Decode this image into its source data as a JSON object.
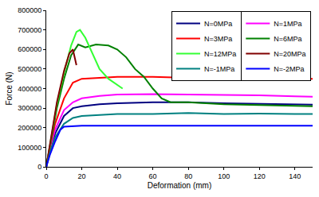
{
  "chart_data": {
    "type": "line",
    "x_label": "Deformation (mm)",
    "y_label": "Force (N)",
    "xlim": [
      0,
      150
    ],
    "xticks": [
      0,
      20,
      40,
      60,
      80,
      100,
      120,
      140
    ],
    "ylim": [
      0,
      800000
    ],
    "yticks": [
      0,
      100000,
      200000,
      300000,
      400000,
      500000,
      600000,
      700000,
      800000
    ],
    "grid": false,
    "legend": "upper right",
    "series": [
      {
        "name": "N=0MPa",
        "color": "#000080",
        "x": [
          0,
          2,
          5,
          10,
          15,
          20,
          30,
          40,
          60,
          80,
          100,
          120,
          140,
          150
        ],
        "values": [
          0,
          80000,
          170000,
          260000,
          300000,
          310000,
          320000,
          325000,
          330000,
          330000,
          325000,
          322000,
          320000,
          318000
        ]
      },
      {
        "name": "N=1MPa",
        "color": "#ff00ff",
        "x": [
          0,
          2,
          5,
          10,
          15,
          20,
          30,
          40,
          60,
          80,
          100,
          120,
          140,
          150
        ],
        "values": [
          0,
          90000,
          190000,
          290000,
          330000,
          350000,
          362000,
          370000,
          372000,
          370000,
          368000,
          365000,
          360000,
          358000
        ]
      },
      {
        "name": "N=3MPa",
        "color": "#ff0000",
        "x": [
          0,
          2,
          5,
          10,
          15,
          20,
          30,
          40,
          60,
          80,
          100,
          120,
          140,
          150
        ],
        "values": [
          0,
          100000,
          220000,
          350000,
          430000,
          450000,
          455000,
          460000,
          460000,
          455000,
          455000,
          452000,
          450000,
          450000
        ]
      },
      {
        "name": "N=6MPa",
        "color": "#008000",
        "x": [
          0,
          3,
          6,
          10,
          14,
          18,
          22,
          28,
          35,
          40,
          45,
          50,
          55,
          60,
          65,
          70,
          80,
          100,
          120,
          150
        ],
        "values": [
          0,
          150000,
          300000,
          450000,
          570000,
          625000,
          610000,
          625000,
          620000,
          600000,
          560000,
          500000,
          460000,
          400000,
          350000,
          330000,
          330000,
          320000,
          315000,
          310000
        ]
      },
      {
        "name": "N=12MPa",
        "color": "#33ff33",
        "x": [
          0,
          3,
          6,
          10,
          14,
          17,
          19,
          22,
          26,
          30,
          35,
          40,
          43
        ],
        "values": [
          0,
          160000,
          320000,
          480000,
          620000,
          690000,
          700000,
          660000,
          580000,
          500000,
          450000,
          420000,
          400000
        ]
      },
      {
        "name": "N=20MPa",
        "color": "#800000",
        "x": [
          0,
          3,
          6,
          10,
          13,
          15,
          16,
          17
        ],
        "values": [
          0,
          170000,
          330000,
          490000,
          580000,
          600000,
          560000,
          520000
        ]
      },
      {
        "name": "N=-1MPa",
        "color": "#008080",
        "x": [
          0,
          2,
          5,
          10,
          15,
          20,
          30,
          40,
          60,
          80,
          100,
          120,
          140,
          150
        ],
        "values": [
          0,
          70000,
          150000,
          220000,
          250000,
          260000,
          265000,
          270000,
          270000,
          275000,
          270000,
          272000,
          270000,
          270000
        ]
      },
      {
        "name": "N=-2MPa",
        "color": "#0000ff",
        "x": [
          0,
          2,
          5,
          8,
          10,
          15,
          20,
          40,
          60,
          80,
          100,
          120,
          140,
          150
        ],
        "values": [
          0,
          60000,
          130000,
          190000,
          205000,
          208000,
          210000,
          210000,
          210000,
          210000,
          210000,
          210000,
          210000,
          210000
        ]
      }
    ]
  }
}
